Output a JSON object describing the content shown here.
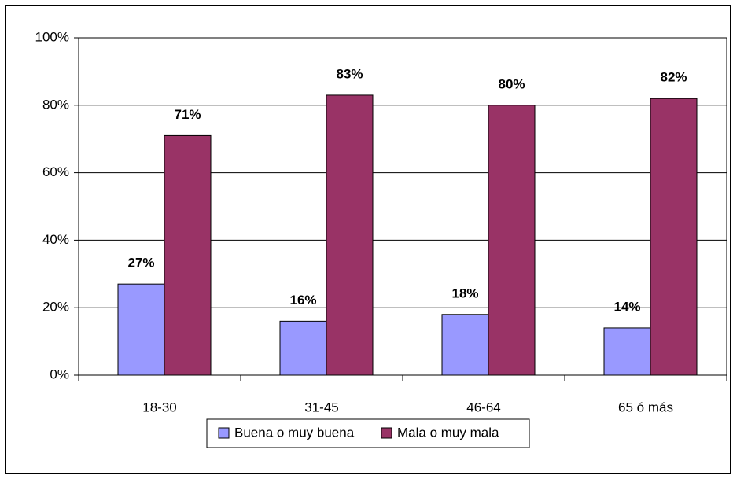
{
  "chart_data": {
    "type": "bar",
    "categories": [
      "18-30",
      "31-45",
      "46-64",
      "65 ó más"
    ],
    "series": [
      {
        "name": "Buena o muy buena",
        "color": "#9999ff",
        "values": [
          27,
          16,
          18,
          14
        ],
        "value_labels": [
          "27%",
          "16%",
          "18%",
          "14%"
        ]
      },
      {
        "name": "Mala o muy mala",
        "color": "#993366",
        "values": [
          71,
          83,
          80,
          82
        ],
        "value_labels": [
          "71%",
          "83%",
          "80%",
          "82%"
        ]
      }
    ],
    "ylim": [
      0,
      100
    ],
    "yticks": [
      {
        "value": 0,
        "label": "0%"
      },
      {
        "value": 20,
        "label": "20%"
      },
      {
        "value": 40,
        "label": "40%"
      },
      {
        "value": 60,
        "label": "60%"
      },
      {
        "value": 80,
        "label": "80%"
      },
      {
        "value": 100,
        "label": "100%"
      }
    ],
    "grid": true,
    "legend": "bottom"
  }
}
